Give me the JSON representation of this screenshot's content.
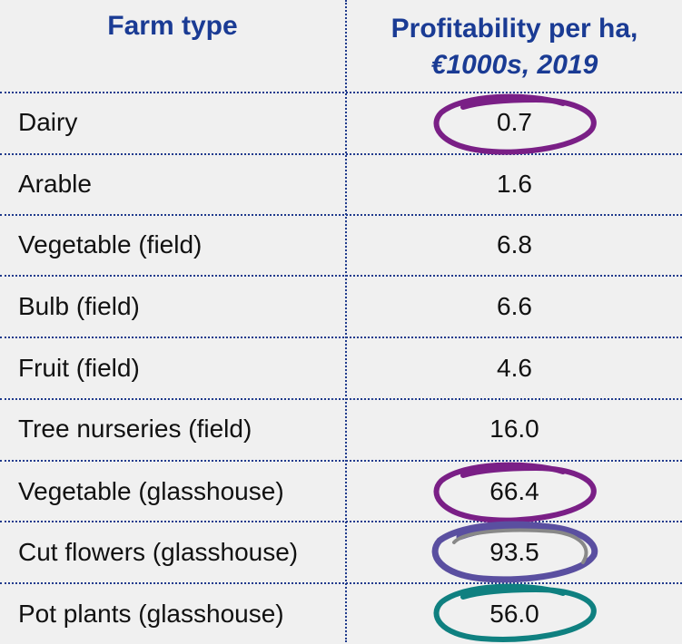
{
  "header": {
    "farm_type": "Farm type",
    "profitability_line1": "Profitability per ha,",
    "profitability_line2": "€1000s, 2019"
  },
  "rows": [
    {
      "type": "Dairy",
      "value": "0.7",
      "circle_color": "#7a1f86"
    },
    {
      "type": "Arable",
      "value": "1.6"
    },
    {
      "type": "Vegetable (field)",
      "value": "6.8"
    },
    {
      "type": "Bulb (field)",
      "value": "6.6"
    },
    {
      "type": "Fruit (field)",
      "value": "4.6"
    },
    {
      "type": "Tree nurseries (field)",
      "value": "16.0"
    },
    {
      "type": "Vegetable (glasshouse)",
      "value": "66.4",
      "circle_color": "#7a1f86"
    },
    {
      "type": "Cut flowers (glasshouse)",
      "value": "93.5",
      "circle_color": "#5a4fa0"
    },
    {
      "type": "Pot plants (glasshouse)",
      "value": "56.0",
      "circle_color": "#0f8080"
    }
  ],
  "colors": {
    "header_text": "#1a3b94",
    "divider": "#1f3a8c",
    "background": "#f0f0f0"
  }
}
